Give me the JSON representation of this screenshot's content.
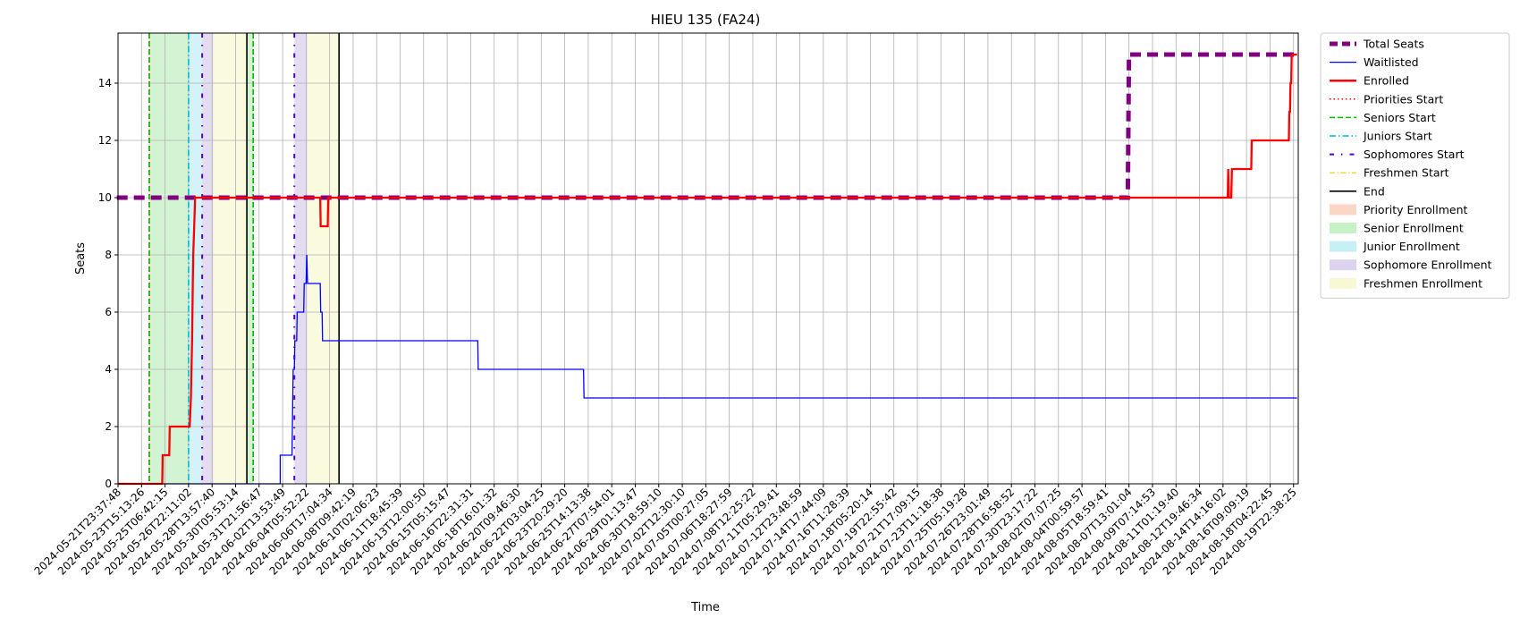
{
  "chart_data": {
    "type": "line",
    "title": "HIEU 135 (FA24)",
    "xlabel": "Time",
    "ylabel": "Seats",
    "ylim": [
      0,
      15.75
    ],
    "grid": true,
    "legend_position": "outside-right-top",
    "y_ticks": [
      0,
      2,
      4,
      6,
      8,
      10,
      12,
      14
    ],
    "x_ticks": [
      "2024-05-21T23:37:48",
      "2024-05-23T15:13:26",
      "2024-05-25T06:42:15",
      "2024-05-26T22:11:02",
      "2024-05-28T13:57:40",
      "2024-05-30T05:53:14",
      "2024-05-31T21:56:47",
      "2024-06-02T13:53:49",
      "2024-06-04T05:52:22",
      "2024-06-06T17:04:34",
      "2024-06-08T09:42:19",
      "2024-06-10T02:06:23",
      "2024-06-11T18:45:39",
      "2024-06-13T12:00:50",
      "2024-06-15T05:15:47",
      "2024-06-16T22:31:31",
      "2024-06-18T16:01:32",
      "2024-06-20T09:46:30",
      "2024-06-22T03:04:25",
      "2024-06-23T20:29:20",
      "2024-06-25T14:13:38",
      "2024-06-27T07:54:01",
      "2024-06-29T01:13:47",
      "2024-06-30T18:59:10",
      "2024-07-02T12:30:10",
      "2024-07-05T00:27:05",
      "2024-07-06T18:27:59",
      "2024-07-08T12:25:22",
      "2024-07-11T05:29:41",
      "2024-07-12T23:48:59",
      "2024-07-14T17:44:09",
      "2024-07-16T11:28:39",
      "2024-07-18T05:20:14",
      "2024-07-19T22:55:42",
      "2024-07-21T17:09:15",
      "2024-07-23T11:18:38",
      "2024-07-25T05:19:28",
      "2024-07-26T23:01:49",
      "2024-07-28T16:58:52",
      "2024-07-30T23:17:22",
      "2024-08-02T07:07:25",
      "2024-08-04T00:59:57",
      "2024-08-05T18:59:41",
      "2024-08-07T13:01:04",
      "2024-08-09T07:14:53",
      "2024-08-11T01:19:40",
      "2024-08-12T19:46:34",
      "2024-08-14T14:16:02",
      "2024-08-16T09:09:19",
      "2024-08-18T04:22:45",
      "2024-08-19T22:38:25"
    ],
    "series": [
      {
        "name": "Total Seats",
        "color": "#800080",
        "style": "dashed-thick",
        "points": [
          [
            -0.05,
            10
          ],
          [
            0,
            10
          ],
          [
            42.95,
            10
          ],
          [
            43,
            15
          ],
          [
            50.15,
            15
          ]
        ]
      },
      {
        "name": "Waitlisted",
        "color": "#0000ff",
        "style": "solid",
        "points": [
          [
            0,
            0
          ],
          [
            6.9,
            0
          ],
          [
            6.9,
            1
          ],
          [
            7.4,
            1
          ],
          [
            7.45,
            4
          ],
          [
            7.5,
            4
          ],
          [
            7.52,
            5
          ],
          [
            7.6,
            5
          ],
          [
            7.62,
            6
          ],
          [
            7.9,
            6
          ],
          [
            7.92,
            7
          ],
          [
            8,
            7
          ],
          [
            8.03,
            8
          ],
          [
            8.06,
            7
          ],
          [
            8.6,
            7
          ],
          [
            8.62,
            6
          ],
          [
            8.68,
            6
          ],
          [
            8.7,
            5
          ],
          [
            15.3,
            5
          ],
          [
            15.32,
            4
          ],
          [
            19.8,
            4
          ],
          [
            19.82,
            3
          ],
          [
            50.15,
            3
          ]
        ]
      },
      {
        "name": "Enrolled",
        "color": "#ff0000",
        "style": "solid",
        "points": [
          [
            0,
            0
          ],
          [
            1.88,
            0
          ],
          [
            1.9,
            1
          ],
          [
            2.18,
            1
          ],
          [
            2.2,
            2
          ],
          [
            3.05,
            2
          ],
          [
            3.1,
            3
          ],
          [
            3.15,
            5
          ],
          [
            3.18,
            7
          ],
          [
            3.2,
            8
          ],
          [
            3.24,
            9
          ],
          [
            3.28,
            10
          ],
          [
            8.6,
            10
          ],
          [
            8.62,
            9
          ],
          [
            8.92,
            9
          ],
          [
            8.94,
            10
          ],
          [
            47.2,
            10
          ],
          [
            47.22,
            11
          ],
          [
            47.25,
            10
          ],
          [
            47.35,
            10
          ],
          [
            47.38,
            11
          ],
          [
            48.2,
            11
          ],
          [
            48.22,
            12
          ],
          [
            49.8,
            12
          ],
          [
            49.82,
            13
          ],
          [
            49.85,
            13
          ],
          [
            49.87,
            14
          ],
          [
            49.9,
            14
          ],
          [
            49.92,
            15
          ],
          [
            50.15,
            15
          ]
        ]
      }
    ],
    "markers": [
      {
        "name": "Priorities Start",
        "color": "#ff0000",
        "style": "dotted",
        "x": [
          1.33,
          5.75
        ]
      },
      {
        "name": "Seniors Start",
        "color": "#00bb00",
        "style": "dashed",
        "x": [
          1.33,
          5.75
        ]
      },
      {
        "name": "Juniors Start",
        "color": "#00bcd4",
        "style": "dashdot",
        "x": [
          3.0
        ]
      },
      {
        "name": "Sophomores Start",
        "color": "#5500cc",
        "style": "loosedashdot",
        "x": [
          3.58,
          7.5
        ]
      },
      {
        "name": "Freshmen Start",
        "color": "#e6d200",
        "style": "dashdot",
        "x": []
      },
      {
        "name": "End",
        "color": "#000000",
        "style": "solid",
        "x": [
          5.48,
          9.4
        ]
      }
    ],
    "spans": [
      {
        "name": "Priority Enrollment",
        "color": "#f4a582",
        "ranges": [
          [
            1.33,
            1.4
          ]
        ]
      },
      {
        "name": "Senior Enrollment",
        "color": "#7ee07e",
        "ranges": [
          [
            1.4,
            3.0
          ],
          [
            5.48,
            5.75
          ]
        ]
      },
      {
        "name": "Junior Enrollment",
        "color": "#80deea",
        "ranges": [
          [
            3.0,
            3.58
          ]
        ]
      },
      {
        "name": "Sophomore Enrollment",
        "color": "#b39ddb",
        "ranges": [
          [
            3.58,
            4.05
          ],
          [
            7.5,
            8.05
          ]
        ]
      },
      {
        "name": "Freshmen Enrollment",
        "color": "#f0f0a0",
        "ranges": [
          [
            4.05,
            5.48
          ],
          [
            8.05,
            9.4
          ]
        ]
      }
    ],
    "x_domain": [
      0,
      50.2
    ],
    "legend": [
      {
        "label": "Total Seats",
        "type": "line",
        "color": "#800080",
        "dash": "9,5",
        "width": 5
      },
      {
        "label": "Waitlisted",
        "type": "line",
        "color": "#0000ff",
        "dash": "",
        "width": 1.3
      },
      {
        "label": "Enrolled",
        "type": "line",
        "color": "#ff0000",
        "dash": "",
        "width": 2.5
      },
      {
        "label": "Priorities Start",
        "type": "line",
        "color": "#ff0000",
        "dash": "1.5,3",
        "width": 1.5
      },
      {
        "label": "Seniors Start",
        "type": "line",
        "color": "#00bb00",
        "dash": "6,3",
        "width": 1.5
      },
      {
        "label": "Juniors Start",
        "type": "line",
        "color": "#00bcd4",
        "dash": "7,3,1.5,3",
        "width": 1.5
      },
      {
        "label": "Sophomores Start",
        "type": "line",
        "color": "#5500cc",
        "dash": "5,8,1.5,8",
        "width": 2
      },
      {
        "label": "Freshmen Start",
        "type": "line",
        "color": "#e6d200",
        "dash": "6,2.5,1.5,2.5",
        "width": 1.2
      },
      {
        "label": "End",
        "type": "line",
        "color": "#000000",
        "dash": "",
        "width": 1.6
      },
      {
        "label": "Priority Enrollment",
        "type": "patch",
        "color": "#f4a582"
      },
      {
        "label": "Senior Enrollment",
        "type": "patch",
        "color": "#7ee07e"
      },
      {
        "label": "Junior Enrollment",
        "type": "patch",
        "color": "#80deea"
      },
      {
        "label": "Sophomore Enrollment",
        "type": "patch",
        "color": "#b39ddb"
      },
      {
        "label": "Freshmen Enrollment",
        "type": "patch",
        "color": "#f0f0a0"
      }
    ]
  }
}
